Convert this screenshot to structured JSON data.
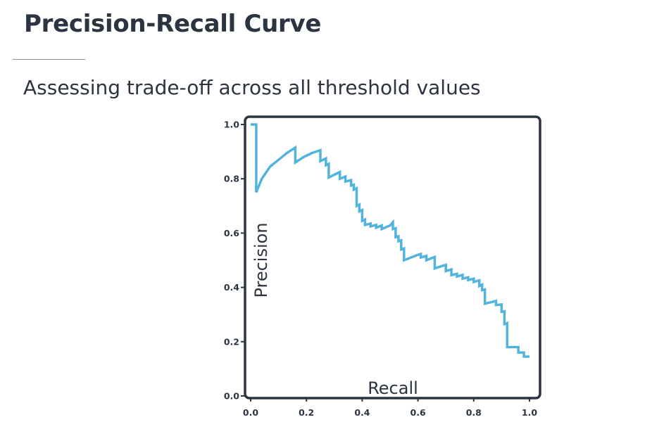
{
  "slide": {
    "title": "Precision-Recall Curve",
    "subtitle": "Assessing trade-off across all threshold values"
  },
  "colors": {
    "curve": "#52b4dc",
    "frame": "#2b3440",
    "text": "#2b3440"
  },
  "chart_data": {
    "type": "line",
    "xlabel": "Recall",
    "ylabel": "Precision",
    "xlim": [
      0.0,
      1.0
    ],
    "ylim": [
      0.0,
      1.0
    ],
    "xticks": [
      "0.0",
      "0.2",
      "0.4",
      "0.6",
      "0.8",
      "1.0"
    ],
    "yticks": [
      "0.0",
      "0.2",
      "0.4",
      "0.6",
      "0.8",
      "1.0"
    ],
    "grid": false,
    "legend": "none",
    "series": [
      {
        "points": [
          [
            0.0,
            1.0
          ],
          [
            0.02,
            1.0
          ],
          [
            0.02,
            0.75
          ],
          [
            0.04,
            0.8
          ],
          [
            0.07,
            0.845
          ],
          [
            0.1,
            0.87
          ],
          [
            0.13,
            0.895
          ],
          [
            0.16,
            0.915
          ],
          [
            0.16,
            0.86
          ],
          [
            0.19,
            0.88
          ],
          [
            0.22,
            0.895
          ],
          [
            0.25,
            0.905
          ],
          [
            0.25,
            0.865
          ],
          [
            0.27,
            0.875
          ],
          [
            0.27,
            0.85
          ],
          [
            0.28,
            0.855
          ],
          [
            0.28,
            0.805
          ],
          [
            0.31,
            0.82
          ],
          [
            0.32,
            0.825
          ],
          [
            0.32,
            0.8
          ],
          [
            0.34,
            0.808
          ],
          [
            0.34,
            0.79
          ],
          [
            0.36,
            0.795
          ],
          [
            0.36,
            0.775
          ],
          [
            0.37,
            0.778
          ],
          [
            0.37,
            0.76
          ],
          [
            0.38,
            0.765
          ],
          [
            0.38,
            0.7
          ],
          [
            0.39,
            0.705
          ],
          [
            0.39,
            0.68
          ],
          [
            0.4,
            0.685
          ],
          [
            0.4,
            0.645
          ],
          [
            0.41,
            0.65
          ],
          [
            0.41,
            0.63
          ],
          [
            0.43,
            0.635
          ],
          [
            0.43,
            0.625
          ],
          [
            0.45,
            0.63
          ],
          [
            0.45,
            0.62
          ],
          [
            0.47,
            0.628
          ],
          [
            0.47,
            0.615
          ],
          [
            0.5,
            0.628
          ],
          [
            0.51,
            0.64
          ],
          [
            0.51,
            0.615
          ],
          [
            0.52,
            0.618
          ],
          [
            0.52,
            0.585
          ],
          [
            0.53,
            0.588
          ],
          [
            0.53,
            0.57
          ],
          [
            0.54,
            0.573
          ],
          [
            0.54,
            0.54
          ],
          [
            0.55,
            0.543
          ],
          [
            0.55,
            0.5
          ],
          [
            0.6,
            0.52
          ],
          [
            0.61,
            0.523
          ],
          [
            0.61,
            0.51
          ],
          [
            0.63,
            0.516
          ],
          [
            0.63,
            0.5
          ],
          [
            0.66,
            0.512
          ],
          [
            0.66,
            0.47
          ],
          [
            0.69,
            0.48
          ],
          [
            0.7,
            0.483
          ],
          [
            0.7,
            0.46
          ],
          [
            0.72,
            0.466
          ],
          [
            0.72,
            0.445
          ],
          [
            0.74,
            0.45
          ],
          [
            0.74,
            0.44
          ],
          [
            0.76,
            0.446
          ],
          [
            0.76,
            0.432
          ],
          [
            0.78,
            0.437
          ],
          [
            0.78,
            0.427
          ],
          [
            0.8,
            0.432
          ],
          [
            0.8,
            0.42
          ],
          [
            0.82,
            0.426
          ],
          [
            0.82,
            0.405
          ],
          [
            0.83,
            0.41
          ],
          [
            0.83,
            0.39
          ],
          [
            0.84,
            0.392
          ],
          [
            0.84,
            0.34
          ],
          [
            0.88,
            0.35
          ],
          [
            0.88,
            0.335
          ],
          [
            0.9,
            0.337
          ],
          [
            0.9,
            0.31
          ],
          [
            0.91,
            0.312
          ],
          [
            0.91,
            0.265
          ],
          [
            0.92,
            0.268
          ],
          [
            0.92,
            0.18
          ],
          [
            0.96,
            0.18
          ],
          [
            0.96,
            0.16
          ],
          [
            0.98,
            0.16
          ],
          [
            0.98,
            0.145
          ],
          [
            1.0,
            0.145
          ]
        ]
      }
    ]
  }
}
